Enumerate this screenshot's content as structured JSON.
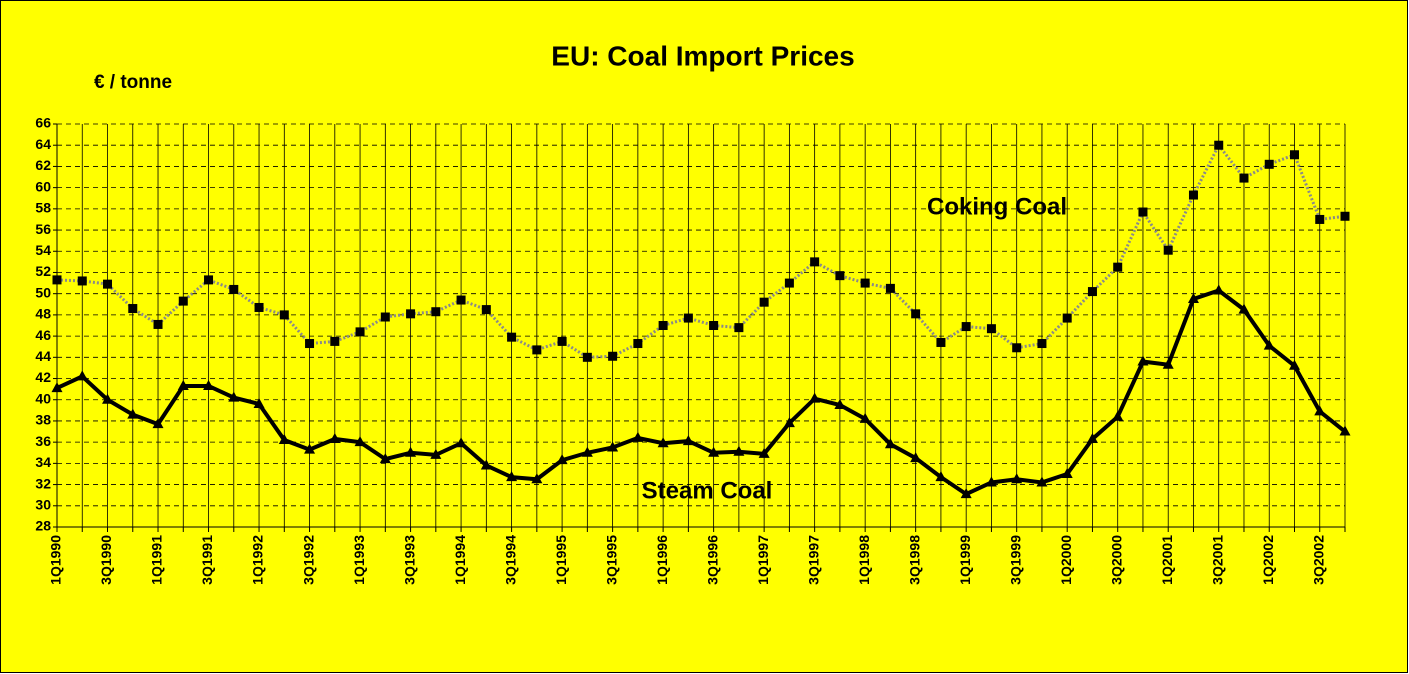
{
  "chart_data": {
    "type": "line",
    "title": "EU: Coal Import Prices",
    "y_label": "€ / tonne",
    "categories": [
      "1Q1990",
      null,
      "3Q1990",
      null,
      "1Q1991",
      null,
      "3Q1991",
      null,
      "1Q1992",
      null,
      "3Q1992",
      null,
      "1Q1993",
      null,
      "3Q1993",
      null,
      "1Q1994",
      null,
      "3Q1994",
      null,
      "1Q1995",
      null,
      "3Q1995",
      null,
      "1Q1996",
      null,
      "3Q1996",
      null,
      "1Q1997",
      null,
      "3Q1997",
      null,
      "1Q1998",
      null,
      "3Q1998",
      null,
      "1Q1999",
      null,
      "3Q1999",
      null,
      "1Q2000",
      null,
      "3Q2000",
      null,
      "1Q2001",
      null,
      "3Q2001",
      null,
      "1Q2002",
      null,
      "3Q2002",
      null
    ],
    "series": [
      {
        "name": "Coking Coal",
        "color": "#000000",
        "values": [
          51.3,
          51.2,
          50.9,
          48.6,
          47.1,
          49.3,
          51.3,
          50.4,
          48.7,
          48.0,
          45.3,
          45.5,
          46.4,
          47.8,
          48.1,
          48.3,
          49.4,
          48.5,
          45.9,
          44.7,
          45.5,
          44.0,
          44.1,
          45.3,
          47.0,
          47.7,
          47.0,
          46.8,
          49.2,
          51.0,
          53.0,
          51.7,
          51.0,
          50.5,
          48.1,
          45.4,
          46.9,
          46.7,
          44.9,
          45.3,
          47.7,
          50.2,
          52.5,
          57.7,
          54.1,
          59.3,
          64.0,
          60.9,
          62.2,
          63.1,
          57.0,
          57.3
        ]
      },
      {
        "name": "Steam Coal",
        "color": "#000000",
        "values": [
          41.1,
          42.2,
          40.0,
          38.6,
          37.7,
          41.3,
          41.3,
          40.2,
          39.6,
          36.2,
          35.3,
          36.3,
          36.0,
          34.4,
          35.0,
          34.8,
          35.9,
          33.8,
          32.7,
          32.5,
          34.3,
          35.0,
          35.5,
          36.4,
          35.9,
          36.1,
          35.0,
          35.1,
          34.9,
          37.8,
          40.1,
          39.5,
          38.2,
          35.8,
          34.5,
          32.7,
          31.1,
          32.2,
          32.5,
          32.2,
          33.0,
          36.3,
          38.4,
          43.6,
          43.3,
          49.5,
          50.3,
          48.5,
          45.1,
          43.2,
          38.9,
          37.0
        ]
      }
    ],
    "ylim": [
      28,
      66
    ],
    "yticks": [
      28,
      30,
      32,
      34,
      36,
      38,
      40,
      42,
      44,
      46,
      48,
      50,
      52,
      54,
      56,
      58,
      60,
      62,
      64,
      66
    ],
    "grid": true
  }
}
